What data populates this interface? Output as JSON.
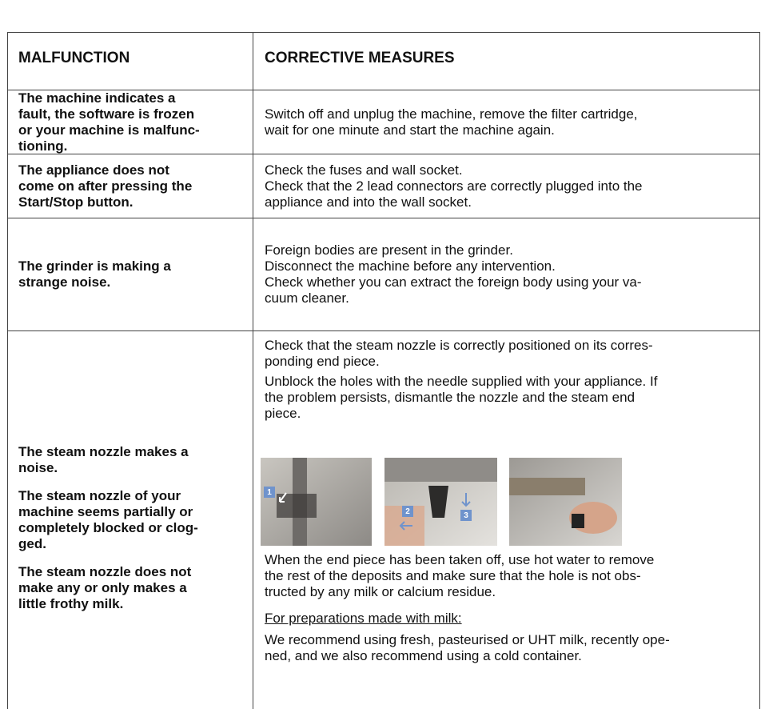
{
  "table": {
    "headers": [
      "MALFUNCTION",
      "CORRECTIVE MEASURES"
    ],
    "rows": [
      {
        "malfunction": [
          [
            "The machine indicates a",
            "fault, the software is frozen",
            "or your machine is malfunc-",
            "tioning."
          ]
        ],
        "measures": [
          [
            "Switch off and unplug the machine, remove the filter cartridge,",
            "wait for one minute and start the machine again."
          ]
        ]
      },
      {
        "malfunction": [
          [
            "The appliance does not",
            "come on after pressing the",
            "Start/Stop button."
          ]
        ],
        "measures": [
          [
            "Check the fuses and wall socket."
          ],
          [
            "Check that the 2 lead connectors are correctly plugged into the",
            "appliance and into the wall socket."
          ]
        ]
      },
      {
        "malfunction": [
          [
            "The grinder is making a",
            "strange noise."
          ]
        ],
        "measures": [
          [
            "Foreign bodies are present in the grinder."
          ],
          [
            "Disconnect the machine before any intervention."
          ],
          [
            "Check whether you can extract the foreign body using your va-",
            "cuum cleaner."
          ]
        ]
      },
      {
        "malfunction": [
          [
            "The steam nozzle makes a",
            "noise."
          ],
          [
            "The steam nozzle of your",
            "machine seems partially or",
            "completely blocked or clog-",
            "ged."
          ],
          [
            "The steam nozzle does not",
            "make any or only makes a",
            "little frothy milk."
          ]
        ],
        "measures": [
          [
            "Check that the steam nozzle is correctly positioned on its corres-",
            "ponding end piece."
          ],
          [
            "Unblock the holes with the needle supplied with your appliance. If",
            "the problem persists, dismantle the nozzle and the steam end",
            "piece."
          ]
        ],
        "badges": [
          "1",
          "2",
          "3"
        ],
        "after_photos": [
          [
            "When the end piece has been taken off, use hot water to remove",
            "the rest of the deposits and make sure that the hole is not obs-",
            "tructed by any milk or calcium residue."
          ]
        ],
        "milk_heading": "For preparations made with milk:",
        "milk_text": [
          "We recommend using fresh, pasteurised or UHT milk, recently ope-",
          "ned, and we also recommend using a cold container."
        ]
      }
    ]
  }
}
